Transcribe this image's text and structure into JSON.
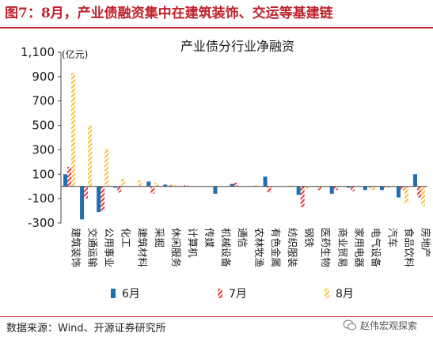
{
  "figure": {
    "title": "图7：8月，产业债融资集中在建筑装饰、交运等基建链",
    "source": "数据来源：Wind、开源证券研究所",
    "watermark": "赵伟宏观探索"
  },
  "colors": {
    "title_red": "#c0222b",
    "series_6": "#1f6fb5",
    "series_7": "#e8383d",
    "series_8": "#f5c242"
  },
  "chart_data": {
    "type": "bar",
    "title": "产业债分行业净融资",
    "unit_label": "(亿元)",
    "ylim": [
      -300,
      1100
    ],
    "yticks": [
      -300,
      -100,
      100,
      300,
      500,
      700,
      900,
      1100
    ],
    "ytick_labels": [
      "-300",
      "-100",
      "100",
      "300",
      "500",
      "700",
      "900",
      "1,100"
    ],
    "grid": false,
    "legend_position": "bottom",
    "categories": [
      "建筑装饰",
      "交通运输",
      "公用事业",
      "化工",
      "建筑材料",
      "采掘",
      "休闲服务",
      "计算机",
      "传媒",
      "机械设备",
      "通信",
      "农林牧渔",
      "有色金属",
      "纺织服装",
      "钢铁",
      "医药生物",
      "商业贸易",
      "家用电器",
      "电气设备",
      "汽车",
      "食品饮料",
      "房地产"
    ],
    "series": [
      {
        "name": "6月",
        "values": [
          100,
          -270,
          -210,
          -10,
          0,
          40,
          15,
          0,
          0,
          -60,
          20,
          0,
          80,
          0,
          -70,
          0,
          -60,
          -10,
          -30,
          -30,
          -90,
          100
        ]
      },
      {
        "name": "7月",
        "values": [
          160,
          -100,
          -200,
          -50,
          0,
          -60,
          10,
          10,
          0,
          0,
          30,
          0,
          -50,
          0,
          -170,
          -30,
          -30,
          -40,
          -10,
          -10,
          -30,
          -90
        ]
      },
      {
        "name": "8月",
        "values": [
          930,
          500,
          310,
          60,
          50,
          30,
          20,
          5,
          0,
          0,
          0,
          10,
          0,
          10,
          -20,
          -10,
          0,
          0,
          -30,
          -10,
          -140,
          -160
        ]
      }
    ]
  }
}
